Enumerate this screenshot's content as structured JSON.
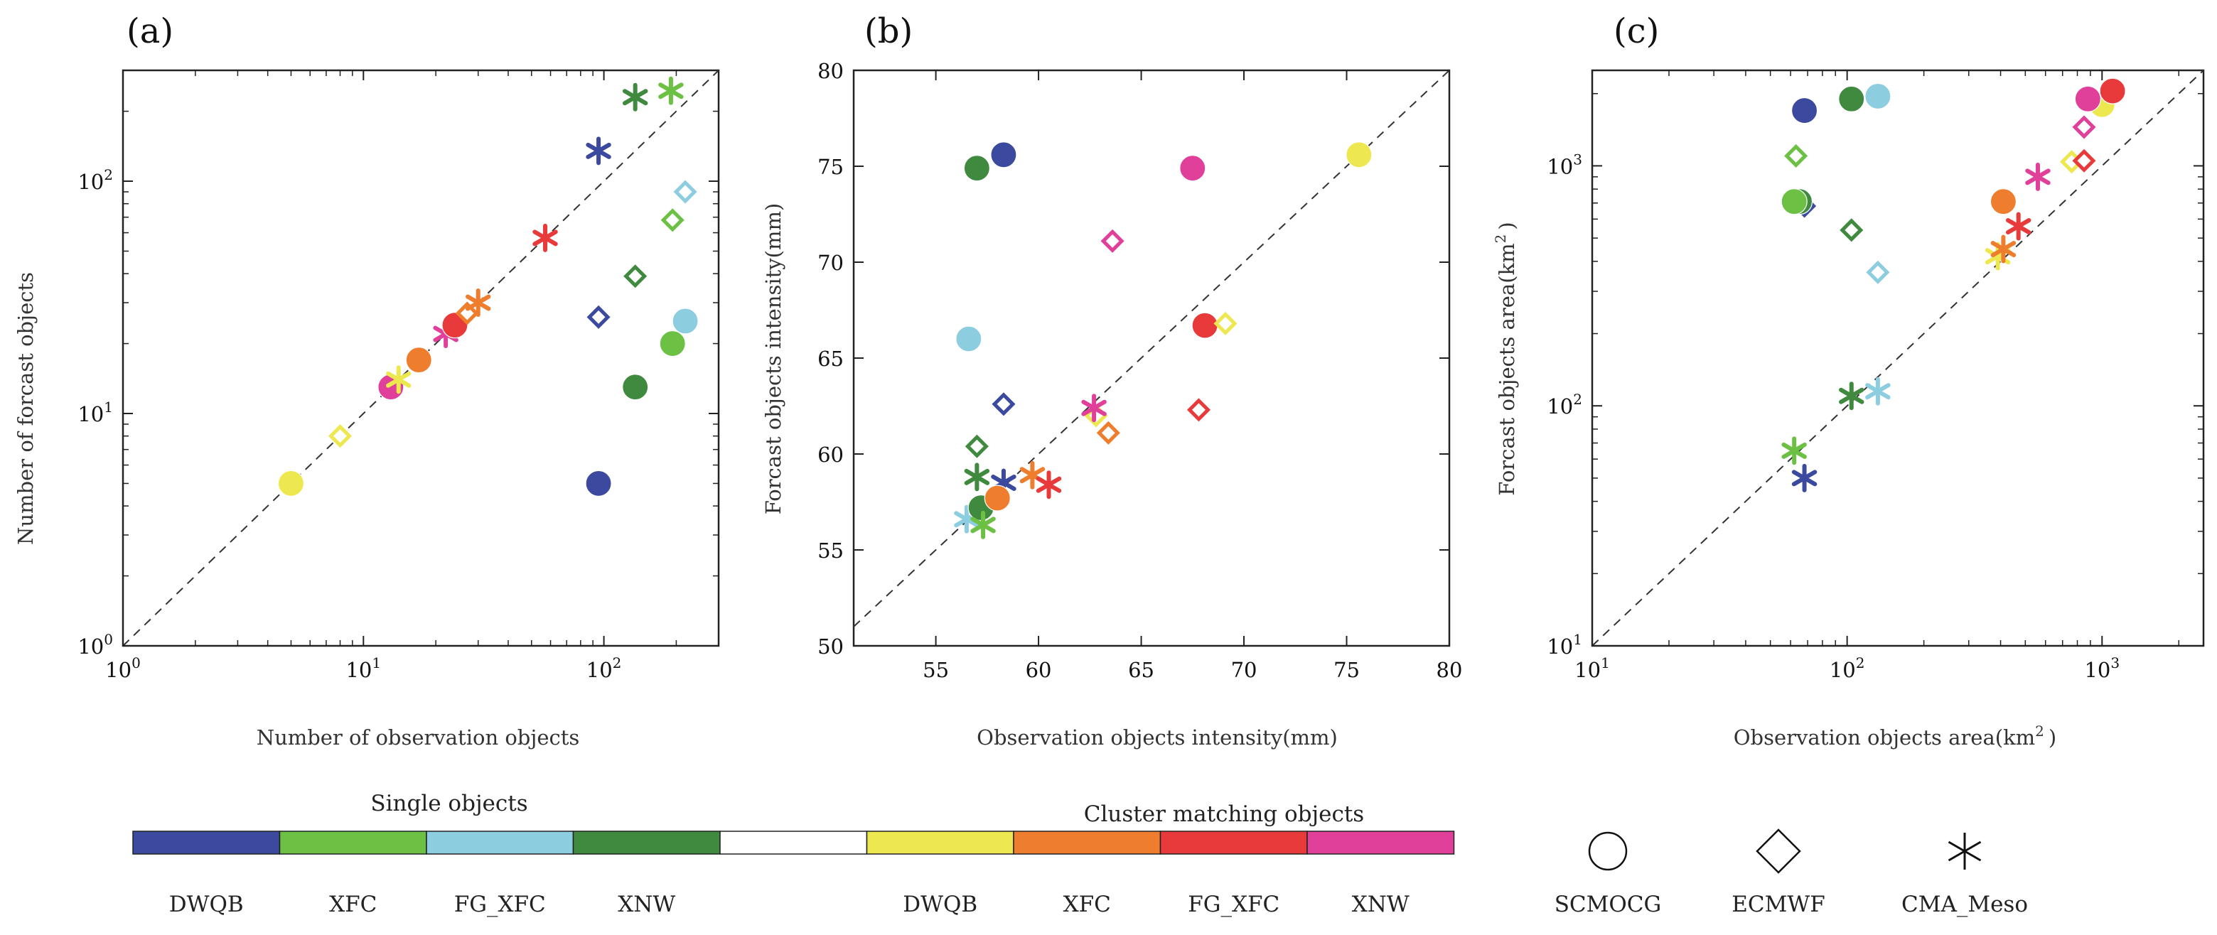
{
  "colors": {
    "Single_DWQB": "#3b4a9e",
    "Single_XFC": "#6cc043",
    "Single_FG_XFC": "#8ccde0",
    "Single_XNW": "#3f8a3f",
    "Cluster_DWQB": "#ede84f",
    "Cluster_XFC": "#ee7d2e",
    "Cluster_FG_XFC": "#e83a3a",
    "Cluster_XNW": "#e0409a"
  },
  "chart_data": [
    {
      "id": "a",
      "panel_label": "(a)",
      "type": "scatter",
      "xscale": "log",
      "yscale": "log",
      "xlim": [
        1,
        300
      ],
      "ylim": [
        1,
        300
      ],
      "xticks": [
        1,
        10,
        100
      ],
      "yticks": [
        1,
        10,
        100
      ],
      "xtick_base": [
        "10",
        "10",
        "10"
      ],
      "xtick_exp": [
        "0",
        "1",
        "2"
      ],
      "ytick_base": [
        "10",
        "10",
        "10"
      ],
      "ytick_exp": [
        "0",
        "1",
        "2"
      ],
      "xlabel": "Number of observation objects",
      "ylabel": "Number of forcast objects",
      "diagonal": true,
      "points": [
        {
          "x": 5,
          "y": 5,
          "c": "Cluster_DWQB",
          "m": "circle"
        },
        {
          "x": 8,
          "y": 8,
          "c": "Cluster_DWQB",
          "m": "diamond"
        },
        {
          "x": 13,
          "y": 13,
          "c": "Cluster_XNW",
          "m": "circle"
        },
        {
          "x": 14,
          "y": 14,
          "c": "Cluster_DWQB",
          "m": "star"
        },
        {
          "x": 17,
          "y": 17,
          "c": "Cluster_XFC",
          "m": "circle"
        },
        {
          "x": 22,
          "y": 22,
          "c": "Cluster_XNW",
          "m": "star"
        },
        {
          "x": 24,
          "y": 24,
          "c": "Cluster_FG_XFC",
          "m": "circle"
        },
        {
          "x": 27,
          "y": 27,
          "c": "Cluster_XFC",
          "m": "diamond"
        },
        {
          "x": 30,
          "y": 30,
          "c": "Cluster_XFC",
          "m": "star"
        },
        {
          "x": 57,
          "y": 57,
          "c": "Cluster_FG_XFC",
          "m": "star"
        },
        {
          "x": 95,
          "y": 5,
          "c": "Single_DWQB",
          "m": "circle"
        },
        {
          "x": 95,
          "y": 26,
          "c": "Single_DWQB",
          "m": "diamond"
        },
        {
          "x": 95,
          "y": 135,
          "c": "Single_DWQB",
          "m": "star"
        },
        {
          "x": 135,
          "y": 13,
          "c": "Single_XNW",
          "m": "circle"
        },
        {
          "x": 135,
          "y": 39,
          "c": "Single_XNW",
          "m": "diamond"
        },
        {
          "x": 135,
          "y": 230,
          "c": "Single_XNW",
          "m": "star"
        },
        {
          "x": 193,
          "y": 20,
          "c": "Single_XFC",
          "m": "circle"
        },
        {
          "x": 193,
          "y": 68,
          "c": "Single_XFC",
          "m": "diamond"
        },
        {
          "x": 190,
          "y": 245,
          "c": "Single_XFC",
          "m": "star"
        },
        {
          "x": 218,
          "y": 25,
          "c": "Single_FG_XFC",
          "m": "circle"
        },
        {
          "x": 218,
          "y": 90,
          "c": "Single_FG_XFC",
          "m": "diamond"
        }
      ]
    },
    {
      "id": "b",
      "panel_label": "(b)",
      "type": "scatter",
      "xscale": "linear",
      "yscale": "linear",
      "xlim": [
        51,
        80
      ],
      "ylim": [
        50,
        80
      ],
      "xticks": [
        55,
        60,
        65,
        70,
        75,
        80
      ],
      "yticks": [
        50,
        55,
        60,
        65,
        70,
        75,
        80
      ],
      "xtick_labels": [
        "55",
        "60",
        "65",
        "70",
        "75",
        "80"
      ],
      "ytick_labels": [
        "50",
        "55",
        "60",
        "65",
        "70",
        "75",
        "80"
      ],
      "xlabel": "Observation objects intensity(mm)",
      "ylabel": "Forcast objects intensity(mm)",
      "diagonal": true,
      "points": [
        {
          "x": 56.6,
          "y": 66.0,
          "c": "Single_FG_XFC",
          "m": "circle"
        },
        {
          "x": 57.0,
          "y": 74.9,
          "c": "Single_XNW",
          "m": "circle"
        },
        {
          "x": 58.3,
          "y": 75.6,
          "c": "Single_DWQB",
          "m": "circle"
        },
        {
          "x": 58.3,
          "y": 62.6,
          "c": "Single_DWQB",
          "m": "diamond"
        },
        {
          "x": 57.0,
          "y": 60.4,
          "c": "Single_XNW",
          "m": "diamond"
        },
        {
          "x": 57.0,
          "y": 58.8,
          "c": "Single_XNW",
          "m": "star"
        },
        {
          "x": 58.3,
          "y": 58.5,
          "c": "Single_DWQB",
          "m": "star"
        },
        {
          "x": 56.5,
          "y": 56.6,
          "c": "Single_FG_XFC",
          "m": "star"
        },
        {
          "x": 57.2,
          "y": 57.2,
          "c": "Single_XNW",
          "m": "circle"
        },
        {
          "x": 57.3,
          "y": 56.3,
          "c": "Single_XFC",
          "m": "star"
        },
        {
          "x": 58.0,
          "y": 57.7,
          "c": "Cluster_XFC",
          "m": "circle"
        },
        {
          "x": 59.7,
          "y": 58.9,
          "c": "Cluster_XFC",
          "m": "star"
        },
        {
          "x": 60.5,
          "y": 58.4,
          "c": "Cluster_FG_XFC",
          "m": "star"
        },
        {
          "x": 62.8,
          "y": 62.0,
          "c": "Cluster_DWQB",
          "m": "diamond"
        },
        {
          "x": 62.7,
          "y": 62.4,
          "c": "Cluster_XNW",
          "m": "star"
        },
        {
          "x": 63.4,
          "y": 61.1,
          "c": "Cluster_XFC",
          "m": "diamond"
        },
        {
          "x": 63.6,
          "y": 71.1,
          "c": "Cluster_XNW",
          "m": "diamond"
        },
        {
          "x": 67.5,
          "y": 74.9,
          "c": "Cluster_XNW",
          "m": "circle"
        },
        {
          "x": 67.8,
          "y": 62.3,
          "c": "Cluster_FG_XFC",
          "m": "diamond"
        },
        {
          "x": 68.1,
          "y": 66.7,
          "c": "Cluster_FG_XFC",
          "m": "circle"
        },
        {
          "x": 69.1,
          "y": 66.8,
          "c": "Cluster_DWQB",
          "m": "diamond"
        },
        {
          "x": 75.6,
          "y": 75.6,
          "c": "Cluster_DWQB",
          "m": "circle"
        }
      ]
    },
    {
      "id": "c",
      "panel_label": "(c)",
      "type": "scatter",
      "xscale": "log",
      "yscale": "log",
      "xlim": [
        10,
        2500
      ],
      "ylim": [
        10,
        2500
      ],
      "xticks": [
        10,
        100,
        1000
      ],
      "yticks": [
        10,
        100,
        1000
      ],
      "xtick_base": [
        "10",
        "10",
        "10"
      ],
      "xtick_exp": [
        "1",
        "2",
        "3"
      ],
      "ytick_base": [
        "10",
        "10",
        "10"
      ],
      "ytick_exp": [
        "1",
        "2",
        "3"
      ],
      "xlabel": "Observation objects area(km",
      "xlabel_exp": "2",
      "xlabel_close": ")",
      "ylabel": "Forcast objects area(km",
      "ylabel_exp": "2",
      "ylabel_close": ")",
      "diagonal": true,
      "points": [
        {
          "x": 68,
          "y": 1700,
          "c": "Single_DWQB",
          "m": "circle"
        },
        {
          "x": 68,
          "y": 680,
          "c": "Single_DWQB",
          "m": "diamond"
        },
        {
          "x": 63,
          "y": 1100,
          "c": "Single_XFC",
          "m": "diamond"
        },
        {
          "x": 65,
          "y": 710,
          "c": "Single_XNW",
          "m": "circle"
        },
        {
          "x": 62,
          "y": 710,
          "c": "Single_XFC",
          "m": "circle"
        },
        {
          "x": 104,
          "y": 1900,
          "c": "Single_XNW",
          "m": "circle"
        },
        {
          "x": 132,
          "y": 1950,
          "c": "Single_FG_XFC",
          "m": "circle"
        },
        {
          "x": 104,
          "y": 540,
          "c": "Single_XNW",
          "m": "diamond"
        },
        {
          "x": 132,
          "y": 360,
          "c": "Single_FG_XFC",
          "m": "diamond"
        },
        {
          "x": 104,
          "y": 110,
          "c": "Single_XNW",
          "m": "star"
        },
        {
          "x": 132,
          "y": 115,
          "c": "Single_FG_XFC",
          "m": "star"
        },
        {
          "x": 62,
          "y": 65,
          "c": "Single_XFC",
          "m": "star"
        },
        {
          "x": 68,
          "y": 50,
          "c": "Single_DWQB",
          "m": "star"
        },
        {
          "x": 390,
          "y": 420,
          "c": "Cluster_DWQB",
          "m": "star"
        },
        {
          "x": 410,
          "y": 450,
          "c": "Cluster_XFC",
          "m": "star"
        },
        {
          "x": 470,
          "y": 560,
          "c": "Cluster_FG_XFC",
          "m": "star"
        },
        {
          "x": 410,
          "y": 710,
          "c": "Cluster_XFC",
          "m": "circle"
        },
        {
          "x": 560,
          "y": 900,
          "c": "Cluster_XNW",
          "m": "star"
        },
        {
          "x": 760,
          "y": 1040,
          "c": "Cluster_DWQB",
          "m": "diamond"
        },
        {
          "x": 850,
          "y": 1050,
          "c": "Cluster_FG_XFC",
          "m": "diamond"
        },
        {
          "x": 850,
          "y": 1450,
          "c": "Cluster_XNW",
          "m": "diamond"
        },
        {
          "x": 1000,
          "y": 1800,
          "c": "Cluster_DWQB",
          "m": "circle"
        },
        {
          "x": 880,
          "y": 1900,
          "c": "Cluster_XNW",
          "m": "circle"
        },
        {
          "x": 1100,
          "y": 2050,
          "c": "Cluster_FG_XFC",
          "m": "circle"
        }
      ]
    }
  ],
  "legend": {
    "single_title": "Single objects",
    "cluster_title": "Cluster matching objects",
    "colorbar": [
      "Single_DWQB",
      "Single_XFC",
      "Single_FG_XFC",
      "Single_XNW",
      "blank",
      "Cluster_DWQB",
      "Cluster_XFC",
      "Cluster_FG_XFC",
      "Cluster_XNW"
    ],
    "colorbar_labels": [
      "DWQB",
      "XFC",
      "FG_XFC",
      "XNW",
      "",
      "DWQB",
      "XFC",
      "FG_XFC",
      "XNW"
    ],
    "markers": [
      {
        "m": "circle",
        "label": "SCMOCG"
      },
      {
        "m": "diamond",
        "label": "ECMWF"
      },
      {
        "m": "star",
        "label": "CMA_Meso"
      }
    ]
  }
}
